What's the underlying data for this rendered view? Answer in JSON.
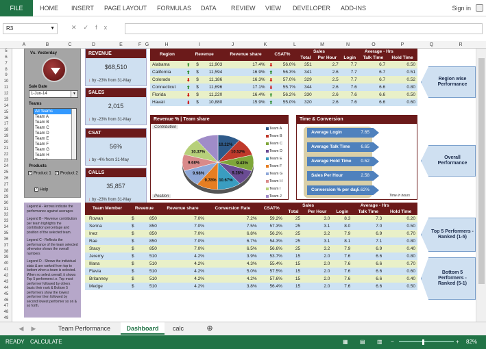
{
  "ribbon": {
    "file": "FILE",
    "tabs": [
      "HOME",
      "INSERT",
      "PAGE LAYOUT",
      "FORMULAS",
      "DATA",
      "REVIEW",
      "VIEW",
      "DEVELOPER",
      "ADD-INS"
    ],
    "signin": "Sign in"
  },
  "formula_bar": {
    "name_box": "R3",
    "fx": "fx",
    "value": ""
  },
  "columns": [
    "A",
    "B",
    "C",
    "D",
    "E",
    "F",
    "G",
    "H",
    "I",
    "J",
    "K",
    "L",
    "M",
    "N",
    "O",
    "P",
    "Q",
    "R"
  ],
  "rows": [
    "5",
    "6",
    "7",
    "8",
    "9",
    "10",
    "11",
    "12",
    "13",
    "14",
    "15",
    "16",
    "17",
    "18",
    "19",
    "20",
    "21",
    "22",
    "23",
    "24",
    "25",
    "26",
    "27",
    "28",
    "29",
    "30",
    "31",
    "32",
    "33",
    "34",
    "35",
    "36",
    "37",
    "38",
    "39",
    "40",
    "41",
    "42",
    "43",
    "44",
    "45",
    "46",
    "47",
    "48",
    "49"
  ],
  "left_panel": {
    "vs_label": "Vs. Yesterday",
    "sale_date_label": "Sale Date",
    "sale_date": "1-Jun-14",
    "teams_label": "Teams",
    "teams": [
      "All Teams",
      "Team A",
      "Team B",
      "Team C",
      "Team D",
      "Team E",
      "Team F",
      "Team G",
      "Team H",
      "Team I"
    ],
    "products_label": "Products",
    "product1": "Product 1",
    "product2": "Product 2",
    "help": "Help"
  },
  "legend_text": [
    "Legend A - Arrows indicate the performance against averages",
    "Legend B - Revenue contribution per team highlights the contribution percentage and position of the selected team.",
    "Legend C - Reflects the performance of the team selected otherwise shows the overall numbers",
    "Legend D - Shows the individual stats & are ranked from top to bottom when a team is selected. When no select overall, it shows Top 5 performers i.e. Top most performer followed by others basis their rank & Bottom 5 performers show the lowest performer then followed by second lowest performer so on & so forth."
  ],
  "kpis": [
    {
      "title": "REVENUE",
      "value": "$68,510",
      "change": "by -23% from 31-May"
    },
    {
      "title": "SALES",
      "value": "2,015",
      "change": "by -23% from 31-May"
    },
    {
      "title": "CSAT",
      "value": "56%",
      "change": "by -4% from 31-May"
    },
    {
      "title": "CALLS",
      "value": "35,857",
      "change": "by -23% from 31-May"
    }
  ],
  "region_table": {
    "headers": [
      "Region",
      "Revenue",
      "Revenue share",
      "CSAT%",
      "Sales",
      "Average - Hrs"
    ],
    "subheaders": [
      "Total",
      "Per Hour",
      "Login",
      "Talk Time",
      "Hold Time"
    ],
    "rows": [
      {
        "region": "Alabama",
        "dir": "up",
        "cur": "$",
        "revenue": "11,903",
        "share": "17.4%",
        "cdir": "down",
        "csat": "56.0%",
        "total": "351",
        "perhour": "2.7",
        "login": "7.7",
        "talk": "6.7",
        "hold": "0.50"
      },
      {
        "region": "California",
        "dir": "up",
        "cur": "$",
        "revenue": "11,594",
        "share": "16.9%",
        "cdir": "up",
        "csat": "56.3%",
        "total": "341",
        "perhour": "2.6",
        "login": "7.7",
        "talk": "6.7",
        "hold": "0.51"
      },
      {
        "region": "Colorado",
        "dir": "down",
        "cur": "$",
        "revenue": "11,186",
        "share": "16.3%",
        "cdir": "down",
        "csat": "57.0%",
        "total": "329",
        "perhour": "2.5",
        "login": "7.7",
        "talk": "6.7",
        "hold": "0.52"
      },
      {
        "region": "Connecticut",
        "dir": "up",
        "cur": "$",
        "revenue": "11,696",
        "share": "17.1%",
        "cdir": "down",
        "csat": "55.7%",
        "total": "344",
        "perhour": "2.6",
        "login": "7.6",
        "talk": "6.6",
        "hold": "0.80"
      },
      {
        "region": "Florida",
        "dir": "down",
        "cur": "$",
        "revenue": "11,220",
        "share": "16.4%",
        "cdir": "up",
        "csat": "56.2%",
        "total": "330",
        "perhour": "2.6",
        "login": "7.6",
        "talk": "6.6",
        "hold": "0.50"
      },
      {
        "region": "Havaii",
        "dir": "down",
        "cur": "$",
        "revenue": "10,880",
        "share": "15.9%",
        "cdir": "up",
        "csat": "55.0%",
        "total": "320",
        "perhour": "2.6",
        "login": "7.6",
        "talk": "6.6",
        "hold": "0.60"
      }
    ]
  },
  "pie": {
    "title": "Revenue % | Team share",
    "contribution": "Contribution",
    "position": "Position",
    "slices": [
      {
        "name": "Team A",
        "value": 10.22,
        "label": "10.22%",
        "color": "#2e5a8a"
      },
      {
        "name": "Team B",
        "value": 10.52,
        "label": "10.52%",
        "color": "#c0392b"
      },
      {
        "name": "Team C",
        "value": 9.43,
        "label": "9.43%",
        "color": "#7fa63a"
      },
      {
        "name": "Team D",
        "value": 9.28,
        "label": "9.28%",
        "color": "#6a4c93"
      },
      {
        "name": "Team E",
        "value": 10.67,
        "label": "10.67%",
        "color": "#3a9dc0"
      },
      {
        "name": "Team F",
        "value": 9.78,
        "label": "9.78%",
        "color": "#e67e22"
      },
      {
        "name": "Team G",
        "value": 9.98,
        "label": "9.98%",
        "color": "#8fa8d8"
      },
      {
        "name": "Team H",
        "value": 9.68,
        "label": "9.68%",
        "color": "#d98a8a"
      },
      {
        "name": "Team I",
        "value": 10.37,
        "label": "10.37%",
        "color": "#b7d07a"
      },
      {
        "name": "Team J",
        "value": 10.07,
        "label": "",
        "color": "#a08cc8"
      }
    ]
  },
  "time": {
    "title": "Time & Conversion",
    "items": [
      {
        "label": "Average Login",
        "value": "7.65"
      },
      {
        "label": "Average Talk Time",
        "value": "6.65"
      },
      {
        "label": "Average Hold Time",
        "value": "0.52"
      },
      {
        "label": "Sales Per Hour",
        "value": "2.58"
      },
      {
        "label": "Conversion % per day",
        "value": "5.62%"
      }
    ],
    "foot": "Time in hours"
  },
  "member_table": {
    "headers": [
      "Team Member",
      "Revenue",
      "Revenue share",
      "Conversion Rate",
      "CSAT%",
      "Sales",
      "Average - Hrs"
    ],
    "subheaders": [
      "Total",
      "Per Hour",
      "Login",
      "Talk Time",
      "Hold Time"
    ],
    "rows": [
      {
        "name": "Rowan",
        "cur": "$",
        "revenue": "850",
        "share": "7.0%",
        "conv": "7.2%",
        "csat": "59.2%",
        "total": "25",
        "perhour": "3.0",
        "login": "8.3",
        "talk": "7.3",
        "hold": "0.20"
      },
      {
        "name": "Serina",
        "cur": "$",
        "revenue": "850",
        "share": "7.0%",
        "conv": "7.5%",
        "csat": "57.3%",
        "total": "25",
        "perhour": "3.1",
        "login": "8.0",
        "talk": "7.0",
        "hold": "0.50"
      },
      {
        "name": "Inez",
        "cur": "$",
        "revenue": "850",
        "share": "7.0%",
        "conv": "6.8%",
        "csat": "56.2%",
        "total": "25",
        "perhour": "3.2",
        "login": "7.9",
        "talk": "6.9",
        "hold": "0.70"
      },
      {
        "name": "Rae",
        "cur": "$",
        "revenue": "850",
        "share": "7.0%",
        "conv": "6.7%",
        "csat": "54.3%",
        "total": "25",
        "perhour": "3.1",
        "login": "8.1",
        "talk": "7.1",
        "hold": "0.80"
      },
      {
        "name": "Stacy",
        "cur": "$",
        "revenue": "850",
        "share": "7.0%",
        "conv": "6.5%",
        "csat": "56.6%",
        "total": "25",
        "perhour": "3.2",
        "login": "7.9",
        "talk": "6.9",
        "hold": "0.40"
      },
      {
        "name": "Jeremy",
        "cur": "$",
        "revenue": "510",
        "share": "4.2%",
        "conv": "3.9%",
        "csat": "53.7%",
        "total": "15",
        "perhour": "2.0",
        "login": "7.6",
        "talk": "6.6",
        "hold": "0.80"
      },
      {
        "name": "Illana",
        "cur": "$",
        "revenue": "510",
        "share": "4.2%",
        "conv": "4.3%",
        "csat": "55.4%",
        "total": "15",
        "perhour": "2.0",
        "login": "7.6",
        "talk": "6.6",
        "hold": "0.70"
      },
      {
        "name": "Flavia",
        "cur": "$",
        "revenue": "510",
        "share": "4.2%",
        "conv": "5.0%",
        "csat": "57.5%",
        "total": "15",
        "perhour": "2.0",
        "login": "7.6",
        "talk": "6.6",
        "hold": "0.60"
      },
      {
        "name": "Britanney",
        "cur": "$",
        "revenue": "510",
        "share": "4.2%",
        "conv": "4.2%",
        "csat": "57.6%",
        "total": "15",
        "perhour": "2.0",
        "login": "7.6",
        "talk": "6.6",
        "hold": "0.40"
      },
      {
        "name": "Medge",
        "cur": "$",
        "revenue": "510",
        "share": "4.2%",
        "conv": "3.8%",
        "csat": "56.4%",
        "total": "15",
        "perhour": "2.0",
        "login": "7.6",
        "talk": "6.6",
        "hold": "0.50"
      }
    ]
  },
  "callouts": [
    "Region wise Performance",
    "Overall Performance",
    "Top 5 Performers - Ranked (1-5)",
    "Bottom 5 Performers - Ranked (5-1)"
  ],
  "sheet_tabs": [
    "Team Performance",
    "Dashboard",
    "calc"
  ],
  "status": {
    "ready": "READY",
    "calculate": "CALCULATE",
    "zoom": "82%"
  },
  "colors": {
    "excel_green": "#217346",
    "header_maroon": "#6b1a1a",
    "kpi_blue": "#cfe0f1"
  }
}
